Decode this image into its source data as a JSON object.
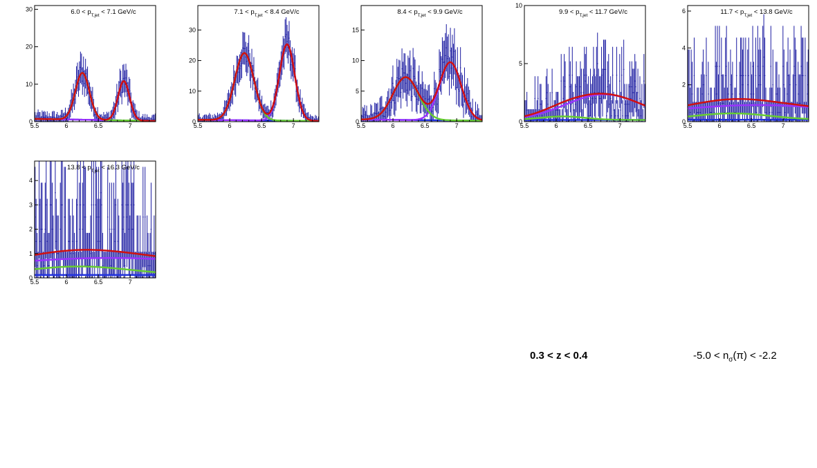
{
  "figure": {
    "annotation_z": "0.3 < z < 0.4",
    "annotation_nsigma_prefix": "-5.0 < n",
    "annotation_nsigma_sub": "σ",
    "annotation_nsigma_suffix": "(π) < -2.2"
  },
  "colors": {
    "data": "#1a1aa0",
    "total_fit": "#d01010",
    "peak1_fit": "#66cc33",
    "peak2_fit": "#9933ff",
    "background_fit": "#2233dd",
    "axis": "#000000"
  },
  "chart_data": [
    {
      "type": "scatter",
      "title": "6.0 < p_{T,jet} < 7.1 GeV/c",
      "title_parts": {
        "pre": "6.0 < p",
        "sub": "T,jet",
        "post": " < 7.1 GeV/c"
      },
      "xlim": [
        5.5,
        7.4
      ],
      "ylim": [
        0,
        31
      ],
      "xticks": [
        "5.5",
        "6",
        "6.5",
        "7"
      ],
      "xtick_values": [
        5.5,
        6,
        6.5,
        7
      ],
      "yticks": [
        "0",
        "10",
        "20",
        "30"
      ],
      "ytick_values": [
        0,
        10,
        20,
        30
      ],
      "peaks": [
        {
          "name": "peak1",
          "mean": 6.25,
          "sigma": 0.11,
          "amp": 12.5
        },
        {
          "name": "peak2",
          "mean": 6.9,
          "sigma": 0.09,
          "amp": 10.5
        }
      ],
      "background": {
        "level": 0.6,
        "slope": -0.3
      },
      "noise": 0.35
    },
    {
      "type": "scatter",
      "title": "7.1 < p_{T,jet} < 8.4 GeV/c",
      "title_parts": {
        "pre": "7.1 < p",
        "sub": "T,jet",
        "post": " < 8.4 GeV/c"
      },
      "xlim": [
        5.5,
        7.4
      ],
      "ylim": [
        0,
        38
      ],
      "xticks": [
        "5.5",
        "6",
        "6.5",
        "7"
      ],
      "xtick_values": [
        5.5,
        6,
        6.5,
        7
      ],
      "yticks": [
        "0",
        "10",
        "20",
        "30"
      ],
      "ytick_values": [
        0,
        10,
        20,
        30
      ],
      "peaks": [
        {
          "name": "peak1",
          "mean": 6.23,
          "sigma": 0.15,
          "amp": 22
        },
        {
          "name": "peak2",
          "mean": 6.9,
          "sigma": 0.12,
          "amp": 25
        }
      ],
      "background": {
        "level": 0.5,
        "slope": -0.2
      },
      "noise": 0.35
    },
    {
      "type": "scatter",
      "title": "8.4 < p_{T,jet} < 9.9 GeV/c",
      "title_parts": {
        "pre": "8.4 < p",
        "sub": "T,jet",
        "post": " < 9.9 GeV/c"
      },
      "xlim": [
        5.5,
        7.4
      ],
      "ylim": [
        0,
        19
      ],
      "xticks": [
        "5.5",
        "6",
        "6.5",
        "7"
      ],
      "xtick_values": [
        5.5,
        6,
        6.5,
        7
      ],
      "yticks": [
        "0",
        "5",
        "10",
        "15"
      ],
      "ytick_values": [
        0,
        5,
        10,
        15
      ],
      "peaks": [
        {
          "name": "peak1",
          "mean": 6.2,
          "sigma": 0.2,
          "amp": 7
        },
        {
          "name": "peak2",
          "mean": 6.9,
          "sigma": 0.17,
          "amp": 9.5
        }
      ],
      "background": {
        "level": 0.3,
        "slope": -0.1
      },
      "noise": 0.45
    },
    {
      "type": "scatter",
      "title": "9.9 < p_{T,jet} < 11.7 GeV/c",
      "title_parts": {
        "pre": "9.9 < p",
        "sub": "T,jet",
        "post": " < 11.7 GeV/c"
      },
      "xlim": [
        5.5,
        7.4
      ],
      "ylim": [
        0,
        10
      ],
      "xticks": [
        "5.5",
        "6",
        "6.5",
        "7"
      ],
      "xtick_values": [
        5.5,
        6,
        6.5,
        7
      ],
      "yticks": [
        "0",
        "5",
        "10"
      ],
      "ytick_values": [
        0,
        5,
        10
      ],
      "peaks": [
        {
          "name": "peak1",
          "mean": 6.1,
          "sigma": 0.35,
          "amp": 0.3
        },
        {
          "name": "peak2",
          "mean": 6.75,
          "sigma": 0.6,
          "amp": 2.2
        }
      ],
      "background": {
        "level": 0.15,
        "slope": 0
      },
      "noise": 0.7
    },
    {
      "type": "scatter",
      "title": "11.7 < p_{T,jet} < 13.8 GeV/c",
      "title_parts": {
        "pre": "11.7 < p",
        "sub": "T,jet",
        "post": " < 13.8 GeV/c"
      },
      "xlim": [
        5.5,
        7.4
      ],
      "ylim": [
        0,
        6.3
      ],
      "xticks": [
        "5.5",
        "6",
        "6.5",
        "7"
      ],
      "xtick_values": [
        5.5,
        6,
        6.5,
        7
      ],
      "yticks": [
        "0",
        "2",
        "4",
        "6"
      ],
      "ytick_values": [
        0,
        2,
        4,
        6
      ],
      "peaks": [
        {
          "name": "peak1",
          "mean": 6.2,
          "sigma": 0.6,
          "amp": 0.35
        },
        {
          "name": "peak2",
          "mean": 6.6,
          "sigma": 1.5,
          "amp": 0.8
        }
      ],
      "background": {
        "level": 0.1,
        "slope": 0
      },
      "noise": 0.8
    },
    {
      "type": "scatter",
      "title": "13.8 < p_{T,jet} < 16.3 GeV/c",
      "title_parts": {
        "pre": "13.8 < p",
        "sub": "T,jet",
        "post": " < 16.3 GeV/c"
      },
      "xlim": [
        5.5,
        7.4
      ],
      "ylim": [
        0,
        4.8
      ],
      "xticks": [
        "5.5",
        "6",
        "6.5",
        "7"
      ],
      "xtick_values": [
        5.5,
        6,
        6.5,
        7
      ],
      "yticks": [
        "0",
        "1",
        "2",
        "3",
        "4"
      ],
      "ytick_values": [
        0,
        1,
        2,
        3,
        4
      ],
      "peaks": [
        {
          "name": "peak1",
          "mean": 6.2,
          "sigma": 0.8,
          "amp": 0.35
        },
        {
          "name": "peak2",
          "mean": 6.7,
          "sigma": 2.0,
          "amp": 0.7
        }
      ],
      "background": {
        "level": 0.12,
        "slope": 0
      },
      "noise": 0.9
    }
  ]
}
